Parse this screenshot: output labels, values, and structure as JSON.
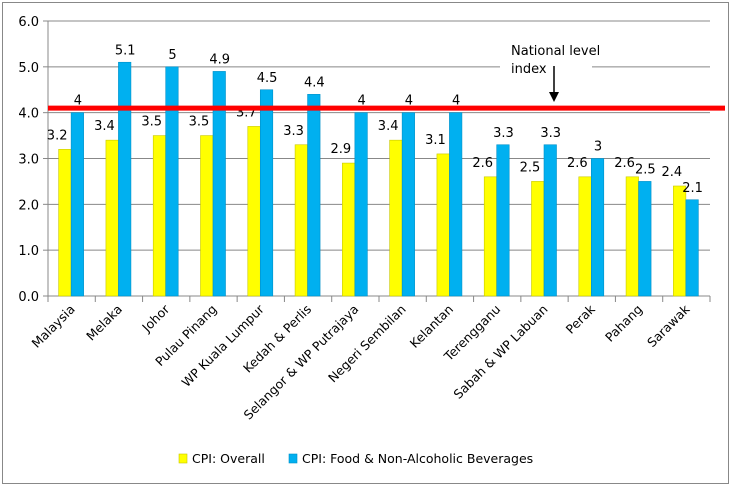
{
  "chart_data": {
    "type": "bar",
    "categories": [
      "Malaysia",
      "Melaka",
      "Johor",
      "Pulau Pinang",
      "WP Kuala Lumpur",
      "Kedah & Perlis",
      "Selangor & WP Putrajaya",
      "Negeri Sembilan",
      "Kelantan",
      "Terengganu",
      "Sabah & WP Labuan",
      "Perak",
      "Pahang",
      "Sarawak"
    ],
    "series": [
      {
        "name": "CPI: Overall",
        "color": "#FFFF00",
        "values": [
          3.2,
          3.4,
          3.5,
          3.5,
          3.7,
          3.3,
          2.9,
          3.4,
          3.1,
          2.6,
          2.5,
          2.6,
          2.6,
          2.4
        ]
      },
      {
        "name": "CPI: Food & Non-Alcoholic Beverages",
        "color": "#00B0F0",
        "values": [
          4.0,
          5.1,
          5.0,
          4.9,
          4.5,
          4.4,
          4.0,
          4.0,
          4.0,
          3.3,
          3.3,
          3.0,
          2.5,
          2.1
        ]
      }
    ],
    "ylim": [
      0,
      6
    ],
    "yticks": [
      "0.0",
      "1.0",
      "2.0",
      "3.0",
      "4.0",
      "5.0",
      "6.0"
    ],
    "grid": true,
    "legend": "bottom",
    "reference_line": {
      "value": 4.1,
      "color": "#FF0000"
    },
    "annotation": {
      "line1": "National level",
      "line2": "index"
    }
  }
}
